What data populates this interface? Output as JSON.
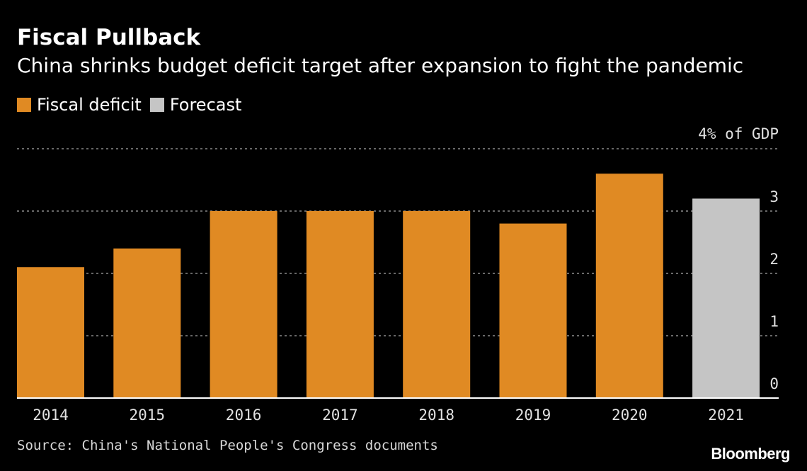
{
  "colors": {
    "background": "#000000",
    "actual": "#e08a23",
    "forecast": "#c5c5c5",
    "gridline": "#8a8a8a",
    "text": "#ffffff"
  },
  "header": {
    "title": "Fiscal Pullback",
    "subtitle": "China shrinks budget deficit target after expansion to fight the pandemic"
  },
  "legend": [
    {
      "label": "Fiscal deficit",
      "color": "#e08a23"
    },
    {
      "label": "Forecast",
      "color": "#c5c5c5"
    }
  ],
  "footer": {
    "source": "Source: China's National People's Congress documents",
    "brand": "Bloomberg"
  },
  "chart_data": {
    "type": "bar",
    "title": "Fiscal Pullback",
    "subtitle": "China shrinks budget deficit target after expansion to fight the pandemic",
    "categories": [
      "2014",
      "2015",
      "2016",
      "2017",
      "2018",
      "2019",
      "2020",
      "2021"
    ],
    "values": [
      2.1,
      2.4,
      3.0,
      3.0,
      3.0,
      2.8,
      3.6,
      3.2
    ],
    "series_by_point": [
      "Fiscal deficit",
      "Fiscal deficit",
      "Fiscal deficit",
      "Fiscal deficit",
      "Fiscal deficit",
      "Fiscal deficit",
      "Fiscal deficit",
      "Forecast"
    ],
    "ylim": [
      0,
      4
    ],
    "yticks": [
      0,
      1,
      2,
      3,
      4
    ],
    "ytick_labels": [
      "0",
      "1",
      "2",
      "3",
      "4% of GDP"
    ],
    "grid": true,
    "y_axis_side": "right",
    "legend_position": "top-left"
  }
}
